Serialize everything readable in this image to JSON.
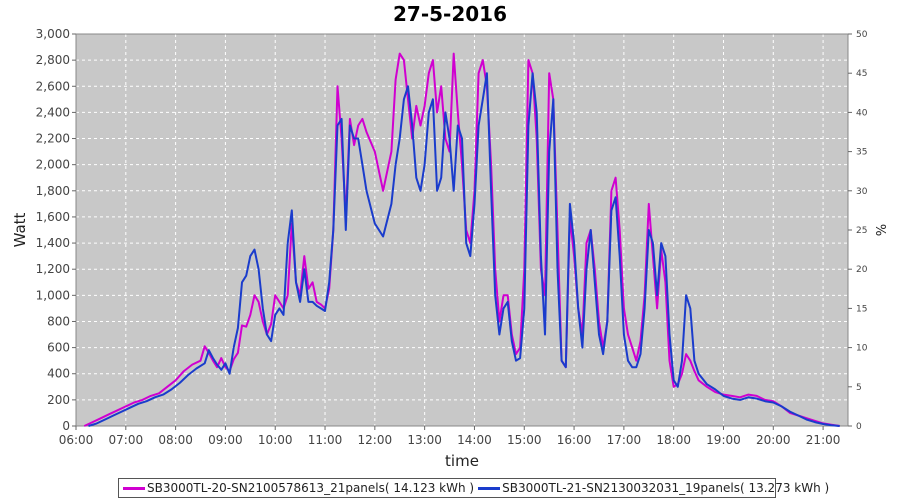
{
  "chart_data": {
    "type": "line",
    "title": "27-5-2016",
    "xlabel": "time",
    "ylabel": "Watt",
    "y2label": "%",
    "ylim": [
      0,
      3000
    ],
    "y2lim": [
      0,
      50
    ],
    "xlim": [
      "06:00",
      "21:30"
    ],
    "x_ticks": [
      "06:00",
      "07:00",
      "08:00",
      "09:00",
      "10:00",
      "11:00",
      "12:00",
      "13:00",
      "14:00",
      "15:00",
      "16:00",
      "17:00",
      "18:00",
      "19:00",
      "20:00",
      "21:00"
    ],
    "y_ticks": [
      0,
      200,
      400,
      600,
      800,
      1000,
      1200,
      1400,
      1600,
      1800,
      2000,
      2200,
      2400,
      2600,
      2800,
      3000
    ],
    "y2_ticks": [
      0,
      5,
      10,
      15,
      20,
      25,
      30,
      35,
      40,
      45,
      50
    ],
    "grid": true,
    "legend_position": "bottom",
    "series": [
      {
        "name": "SB3000TL-20-SN2100578613_21panels( 14.123 kWh )",
        "color": "#d000d0",
        "points": [
          [
            "06:10",
            0
          ],
          [
            "06:20",
            30
          ],
          [
            "06:30",
            60
          ],
          [
            "06:40",
            90
          ],
          [
            "06:50",
            120
          ],
          [
            "07:00",
            150
          ],
          [
            "07:10",
            180
          ],
          [
            "07:20",
            200
          ],
          [
            "07:30",
            230
          ],
          [
            "07:40",
            250
          ],
          [
            "07:50",
            300
          ],
          [
            "08:00",
            350
          ],
          [
            "08:10",
            420
          ],
          [
            "08:20",
            470
          ],
          [
            "08:30",
            500
          ],
          [
            "08:35",
            610
          ],
          [
            "08:40",
            560
          ],
          [
            "08:45",
            500
          ],
          [
            "08:50",
            450
          ],
          [
            "08:55",
            520
          ],
          [
            "09:00",
            450
          ],
          [
            "09:05",
            420
          ],
          [
            "09:10",
            510
          ],
          [
            "09:15",
            560
          ],
          [
            "09:20",
            770
          ],
          [
            "09:25",
            760
          ],
          [
            "09:30",
            850
          ],
          [
            "09:35",
            1000
          ],
          [
            "09:40",
            950
          ],
          [
            "09:45",
            800
          ],
          [
            "09:50",
            700
          ],
          [
            "09:55",
            780
          ],
          [
            "10:00",
            1000
          ],
          [
            "10:05",
            950
          ],
          [
            "10:10",
            900
          ],
          [
            "10:15",
            1000
          ],
          [
            "10:20",
            1550
          ],
          [
            "10:25",
            1100
          ],
          [
            "10:30",
            1000
          ],
          [
            "10:35",
            1300
          ],
          [
            "10:40",
            1050
          ],
          [
            "10:45",
            1100
          ],
          [
            "10:50",
            950
          ],
          [
            "10:55",
            930
          ],
          [
            "11:00",
            900
          ],
          [
            "11:05",
            1050
          ],
          [
            "11:10",
            1500
          ],
          [
            "11:15",
            2600
          ],
          [
            "11:20",
            2200
          ],
          [
            "11:25",
            1600
          ],
          [
            "11:30",
            2350
          ],
          [
            "11:35",
            2150
          ],
          [
            "11:40",
            2300
          ],
          [
            "11:45",
            2350
          ],
          [
            "11:50",
            2250
          ],
          [
            "12:00",
            2100
          ],
          [
            "12:10",
            1800
          ],
          [
            "12:20",
            2100
          ],
          [
            "12:25",
            2650
          ],
          [
            "12:30",
            2850
          ],
          [
            "12:35",
            2800
          ],
          [
            "12:40",
            2500
          ],
          [
            "12:45",
            2200
          ],
          [
            "12:50",
            2450
          ],
          [
            "12:55",
            2300
          ],
          [
            "13:00",
            2450
          ],
          [
            "13:05",
            2700
          ],
          [
            "13:10",
            2800
          ],
          [
            "13:15",
            2400
          ],
          [
            "13:20",
            2600
          ],
          [
            "13:25",
            2200
          ],
          [
            "13:30",
            2100
          ],
          [
            "13:35",
            2850
          ],
          [
            "13:40",
            2400
          ],
          [
            "13:45",
            2000
          ],
          [
            "13:50",
            1500
          ],
          [
            "13:55",
            1400
          ],
          [
            "14:00",
            1800
          ],
          [
            "14:05",
            2700
          ],
          [
            "14:10",
            2800
          ],
          [
            "14:15",
            2600
          ],
          [
            "14:20",
            2000
          ],
          [
            "14:25",
            1200
          ],
          [
            "14:30",
            800
          ],
          [
            "14:35",
            1000
          ],
          [
            "14:40",
            1000
          ],
          [
            "14:45",
            700
          ],
          [
            "14:50",
            550
          ],
          [
            "14:55",
            600
          ],
          [
            "15:00",
            1200
          ],
          [
            "15:05",
            2800
          ],
          [
            "15:10",
            2700
          ],
          [
            "15:15",
            2200
          ],
          [
            "15:20",
            1200
          ],
          [
            "15:25",
            1000
          ],
          [
            "15:30",
            2700
          ],
          [
            "15:35",
            2500
          ],
          [
            "15:40",
            1500
          ],
          [
            "15:45",
            500
          ],
          [
            "15:50",
            450
          ],
          [
            "15:55",
            1600
          ],
          [
            "16:00",
            1300
          ],
          [
            "16:05",
            900
          ],
          [
            "16:10",
            700
          ],
          [
            "16:15",
            1400
          ],
          [
            "16:20",
            1500
          ],
          [
            "16:25",
            1200
          ],
          [
            "16:30",
            800
          ],
          [
            "16:35",
            600
          ],
          [
            "16:40",
            800
          ],
          [
            "16:45",
            1800
          ],
          [
            "16:50",
            1900
          ],
          [
            "16:55",
            1500
          ],
          [
            "17:00",
            900
          ],
          [
            "17:05",
            700
          ],
          [
            "17:10",
            600
          ],
          [
            "17:15",
            500
          ],
          [
            "17:20",
            650
          ],
          [
            "17:25",
            1000
          ],
          [
            "17:30",
            1700
          ],
          [
            "17:35",
            1300
          ],
          [
            "17:40",
            900
          ],
          [
            "17:45",
            1350
          ],
          [
            "17:50",
            1100
          ],
          [
            "17:55",
            500
          ],
          [
            "18:00",
            300
          ],
          [
            "18:05",
            320
          ],
          [
            "18:10",
            400
          ],
          [
            "18:15",
            550
          ],
          [
            "18:20",
            500
          ],
          [
            "18:25",
            420
          ],
          [
            "18:30",
            350
          ],
          [
            "18:40",
            300
          ],
          [
            "18:50",
            260
          ],
          [
            "19:00",
            240
          ],
          [
            "19:10",
            230
          ],
          [
            "19:20",
            220
          ],
          [
            "19:30",
            240
          ],
          [
            "19:40",
            230
          ],
          [
            "19:50",
            200
          ],
          [
            "20:00",
            190
          ],
          [
            "20:10",
            150
          ],
          [
            "20:20",
            100
          ],
          [
            "20:30",
            80
          ],
          [
            "20:40",
            60
          ],
          [
            "20:50",
            40
          ],
          [
            "21:00",
            20
          ],
          [
            "21:10",
            10
          ],
          [
            "21:20",
            0
          ]
        ]
      },
      {
        "name": "SB3000TL-21-SN2130032031_19panels( 13.273 kWh )",
        "color": "#1a3ccc",
        "points": [
          [
            "06:15",
            0
          ],
          [
            "06:25",
            20
          ],
          [
            "06:35",
            50
          ],
          [
            "06:45",
            80
          ],
          [
            "06:55",
            110
          ],
          [
            "07:05",
            140
          ],
          [
            "07:15",
            170
          ],
          [
            "07:25",
            190
          ],
          [
            "07:35",
            220
          ],
          [
            "07:45",
            240
          ],
          [
            "07:55",
            280
          ],
          [
            "08:05",
            330
          ],
          [
            "08:15",
            390
          ],
          [
            "08:25",
            440
          ],
          [
            "08:35",
            480
          ],
          [
            "08:40",
            580
          ],
          [
            "08:45",
            520
          ],
          [
            "08:50",
            470
          ],
          [
            "08:55",
            430
          ],
          [
            "09:00",
            480
          ],
          [
            "09:05",
            400
          ],
          [
            "09:10",
            600
          ],
          [
            "09:15",
            750
          ],
          [
            "09:20",
            1100
          ],
          [
            "09:25",
            1150
          ],
          [
            "09:30",
            1300
          ],
          [
            "09:35",
            1350
          ],
          [
            "09:40",
            1200
          ],
          [
            "09:45",
            900
          ],
          [
            "09:50",
            700
          ],
          [
            "09:55",
            650
          ],
          [
            "10:00",
            850
          ],
          [
            "10:05",
            900
          ],
          [
            "10:10",
            850
          ],
          [
            "10:15",
            1400
          ],
          [
            "10:20",
            1650
          ],
          [
            "10:25",
            1100
          ],
          [
            "10:30",
            950
          ],
          [
            "10:35",
            1200
          ],
          [
            "10:40",
            950
          ],
          [
            "10:45",
            950
          ],
          [
            "10:50",
            920
          ],
          [
            "10:55",
            900
          ],
          [
            "11:00",
            880
          ],
          [
            "11:05",
            1100
          ],
          [
            "11:10",
            1500
          ],
          [
            "11:15",
            2300
          ],
          [
            "11:20",
            2350
          ],
          [
            "11:25",
            1500
          ],
          [
            "11:30",
            2300
          ],
          [
            "11:35",
            2200
          ],
          [
            "11:40",
            2200
          ],
          [
            "11:45",
            2000
          ],
          [
            "11:50",
            1800
          ],
          [
            "12:00",
            1550
          ],
          [
            "12:10",
            1450
          ],
          [
            "12:20",
            1700
          ],
          [
            "12:25",
            2000
          ],
          [
            "12:30",
            2200
          ],
          [
            "12:35",
            2500
          ],
          [
            "12:40",
            2600
          ],
          [
            "12:45",
            2300
          ],
          [
            "12:50",
            1900
          ],
          [
            "12:55",
            1800
          ],
          [
            "13:00",
            2000
          ],
          [
            "13:05",
            2400
          ],
          [
            "13:10",
            2500
          ],
          [
            "13:15",
            1800
          ],
          [
            "13:20",
            1900
          ],
          [
            "13:25",
            2400
          ],
          [
            "13:30",
            2200
          ],
          [
            "13:35",
            1800
          ],
          [
            "13:40",
            2300
          ],
          [
            "13:45",
            2200
          ],
          [
            "13:50",
            1400
          ],
          [
            "13:55",
            1300
          ],
          [
            "14:00",
            1700
          ],
          [
            "14:05",
            2300
          ],
          [
            "14:10",
            2500
          ],
          [
            "14:15",
            2700
          ],
          [
            "14:20",
            1800
          ],
          [
            "14:25",
            1000
          ],
          [
            "14:30",
            700
          ],
          [
            "14:35",
            900
          ],
          [
            "14:40",
            950
          ],
          [
            "14:45",
            650
          ],
          [
            "14:50",
            500
          ],
          [
            "14:55",
            520
          ],
          [
            "15:00",
            900
          ],
          [
            "15:05",
            2300
          ],
          [
            "15:10",
            2700
          ],
          [
            "15:15",
            2400
          ],
          [
            "15:20",
            1300
          ],
          [
            "15:25",
            700
          ],
          [
            "15:30",
            2100
          ],
          [
            "15:35",
            2500
          ],
          [
            "15:40",
            1200
          ],
          [
            "15:45",
            500
          ],
          [
            "15:50",
            450
          ],
          [
            "15:55",
            1700
          ],
          [
            "16:00",
            1400
          ],
          [
            "16:05",
            900
          ],
          [
            "16:10",
            600
          ],
          [
            "16:15",
            1200
          ],
          [
            "16:20",
            1500
          ],
          [
            "16:25",
            1100
          ],
          [
            "16:30",
            700
          ],
          [
            "16:35",
            550
          ],
          [
            "16:40",
            800
          ],
          [
            "16:45",
            1650
          ],
          [
            "16:50",
            1750
          ],
          [
            "16:55",
            1300
          ],
          [
            "17:00",
            700
          ],
          [
            "17:05",
            500
          ],
          [
            "17:10",
            450
          ],
          [
            "17:15",
            450
          ],
          [
            "17:20",
            550
          ],
          [
            "17:25",
            900
          ],
          [
            "17:30",
            1500
          ],
          [
            "17:35",
            1400
          ],
          [
            "17:40",
            1000
          ],
          [
            "17:45",
            1400
          ],
          [
            "17:50",
            1300
          ],
          [
            "17:55",
            700
          ],
          [
            "18:00",
            350
          ],
          [
            "18:05",
            300
          ],
          [
            "18:10",
            500
          ],
          [
            "18:15",
            1000
          ],
          [
            "18:20",
            900
          ],
          [
            "18:25",
            500
          ],
          [
            "18:30",
            400
          ],
          [
            "18:40",
            320
          ],
          [
            "18:50",
            280
          ],
          [
            "19:00",
            230
          ],
          [
            "19:10",
            210
          ],
          [
            "19:20",
            200
          ],
          [
            "19:30",
            220
          ],
          [
            "19:40",
            210
          ],
          [
            "19:50",
            190
          ],
          [
            "20:00",
            180
          ],
          [
            "20:10",
            150
          ],
          [
            "20:20",
            110
          ],
          [
            "20:30",
            80
          ],
          [
            "20:40",
            50
          ],
          [
            "20:50",
            30
          ],
          [
            "21:00",
            15
          ],
          [
            "21:10",
            5
          ],
          [
            "21:20",
            0
          ]
        ]
      }
    ]
  }
}
